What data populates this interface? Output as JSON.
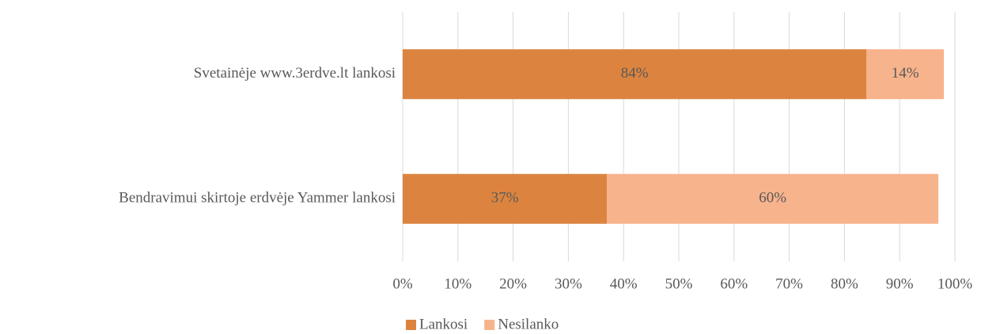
{
  "chart_data": {
    "type": "bar",
    "orientation": "horizontal",
    "stacked": true,
    "categories": [
      "Svetainėje www.3erdve.lt lankosi",
      "Bendravimui skirtoje erdvėje Yammer lankosi"
    ],
    "series": [
      {
        "name": "Lankosi",
        "color": "#dc843f",
        "values": [
          84,
          37
        ],
        "value_labels": [
          "84%",
          "37%"
        ]
      },
      {
        "name": "Nesilanko",
        "color": "#f7b38c",
        "values": [
          14,
          60
        ],
        "value_labels": [
          "14%",
          "60%"
        ]
      }
    ],
    "xlim": [
      0,
      100
    ],
    "xticks": [
      {
        "value": 0,
        "label": "0%"
      },
      {
        "value": 10,
        "label": "10%"
      },
      {
        "value": 20,
        "label": "20%"
      },
      {
        "value": 30,
        "label": "30%"
      },
      {
        "value": 40,
        "label": "40%"
      },
      {
        "value": 50,
        "label": "50%"
      },
      {
        "value": 60,
        "label": "60%"
      },
      {
        "value": 70,
        "label": "70%"
      },
      {
        "value": 80,
        "label": "80%"
      },
      {
        "value": 90,
        "label": "90%"
      },
      {
        "value": 100,
        "label": "100%"
      }
    ],
    "grid": true,
    "legend": "bottom"
  }
}
